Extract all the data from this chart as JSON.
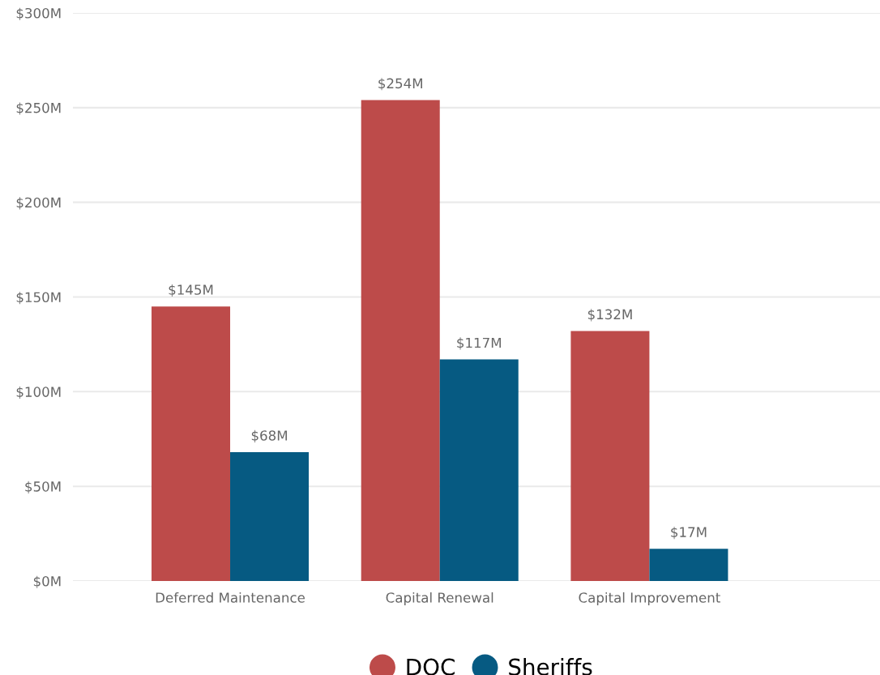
{
  "chart_data": {
    "type": "bar",
    "categories": [
      "Deferred Maintenance",
      "Capital Renewal",
      "Capital Improvement"
    ],
    "series": [
      {
        "name": "DOC",
        "color": "#bd4b4a",
        "values": [
          145,
          254,
          132
        ],
        "value_labels": [
          "$145M",
          "$254M",
          "$132M"
        ]
      },
      {
        "name": "Sheriffs",
        "color": "#065a82",
        "values": [
          68,
          117,
          17
        ],
        "value_labels": [
          "$68M",
          "$117M",
          "$17M"
        ]
      }
    ],
    "ylim": [
      0,
      300
    ],
    "yticks": [
      {
        "value": 0,
        "label": "$0M"
      },
      {
        "value": 50,
        "label": "$50M"
      },
      {
        "value": 100,
        "label": "$100M"
      },
      {
        "value": 150,
        "label": "$150M"
      },
      {
        "value": 200,
        "label": "$200M"
      },
      {
        "value": 250,
        "label": "$250M"
      },
      {
        "value": 300,
        "label": "$300M"
      }
    ],
    "grid": "y",
    "legend": "bottom"
  }
}
